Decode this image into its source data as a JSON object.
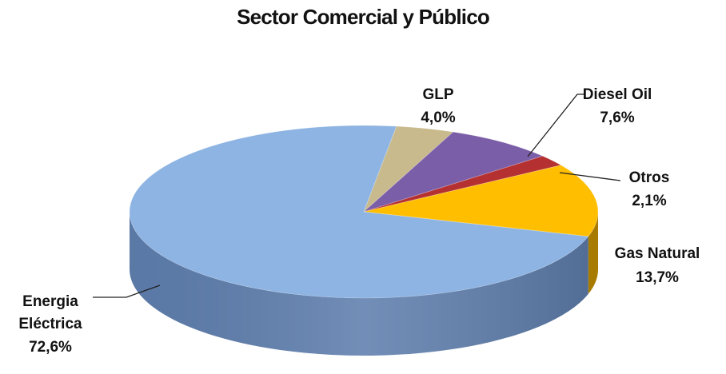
{
  "chart_data": {
    "type": "pie",
    "title": "Sector Comercial y Público",
    "slices": [
      {
        "name": "GLP",
        "value": 4.0,
        "value_label": "4,0%",
        "color": "#C8BA8C",
        "side": "#A89C70"
      },
      {
        "name": "Diesel Oil",
        "value": 7.6,
        "value_label": "7,6%",
        "color": "#7B5EA8",
        "side": "#5E4686"
      },
      {
        "name": "Otros",
        "value": 2.1,
        "value_label": "2,1%",
        "color": "#B53131",
        "side": "#8A2222"
      },
      {
        "name": "Gas Natural",
        "value": 13.7,
        "value_label": "13,7%",
        "color": "#FFBF00",
        "side": "#C48F00"
      },
      {
        "name": "Energía Eléctrica",
        "value": 72.6,
        "value_label": "72,6%",
        "color": "#8EB4E3",
        "side": "#5F7FAE"
      }
    ],
    "label_lines": {
      "energia_line1": "Energia",
      "energia_line2": "Eléctrica",
      "gas_line1": "Gas Natural"
    },
    "style": "3d",
    "legend": "none"
  }
}
